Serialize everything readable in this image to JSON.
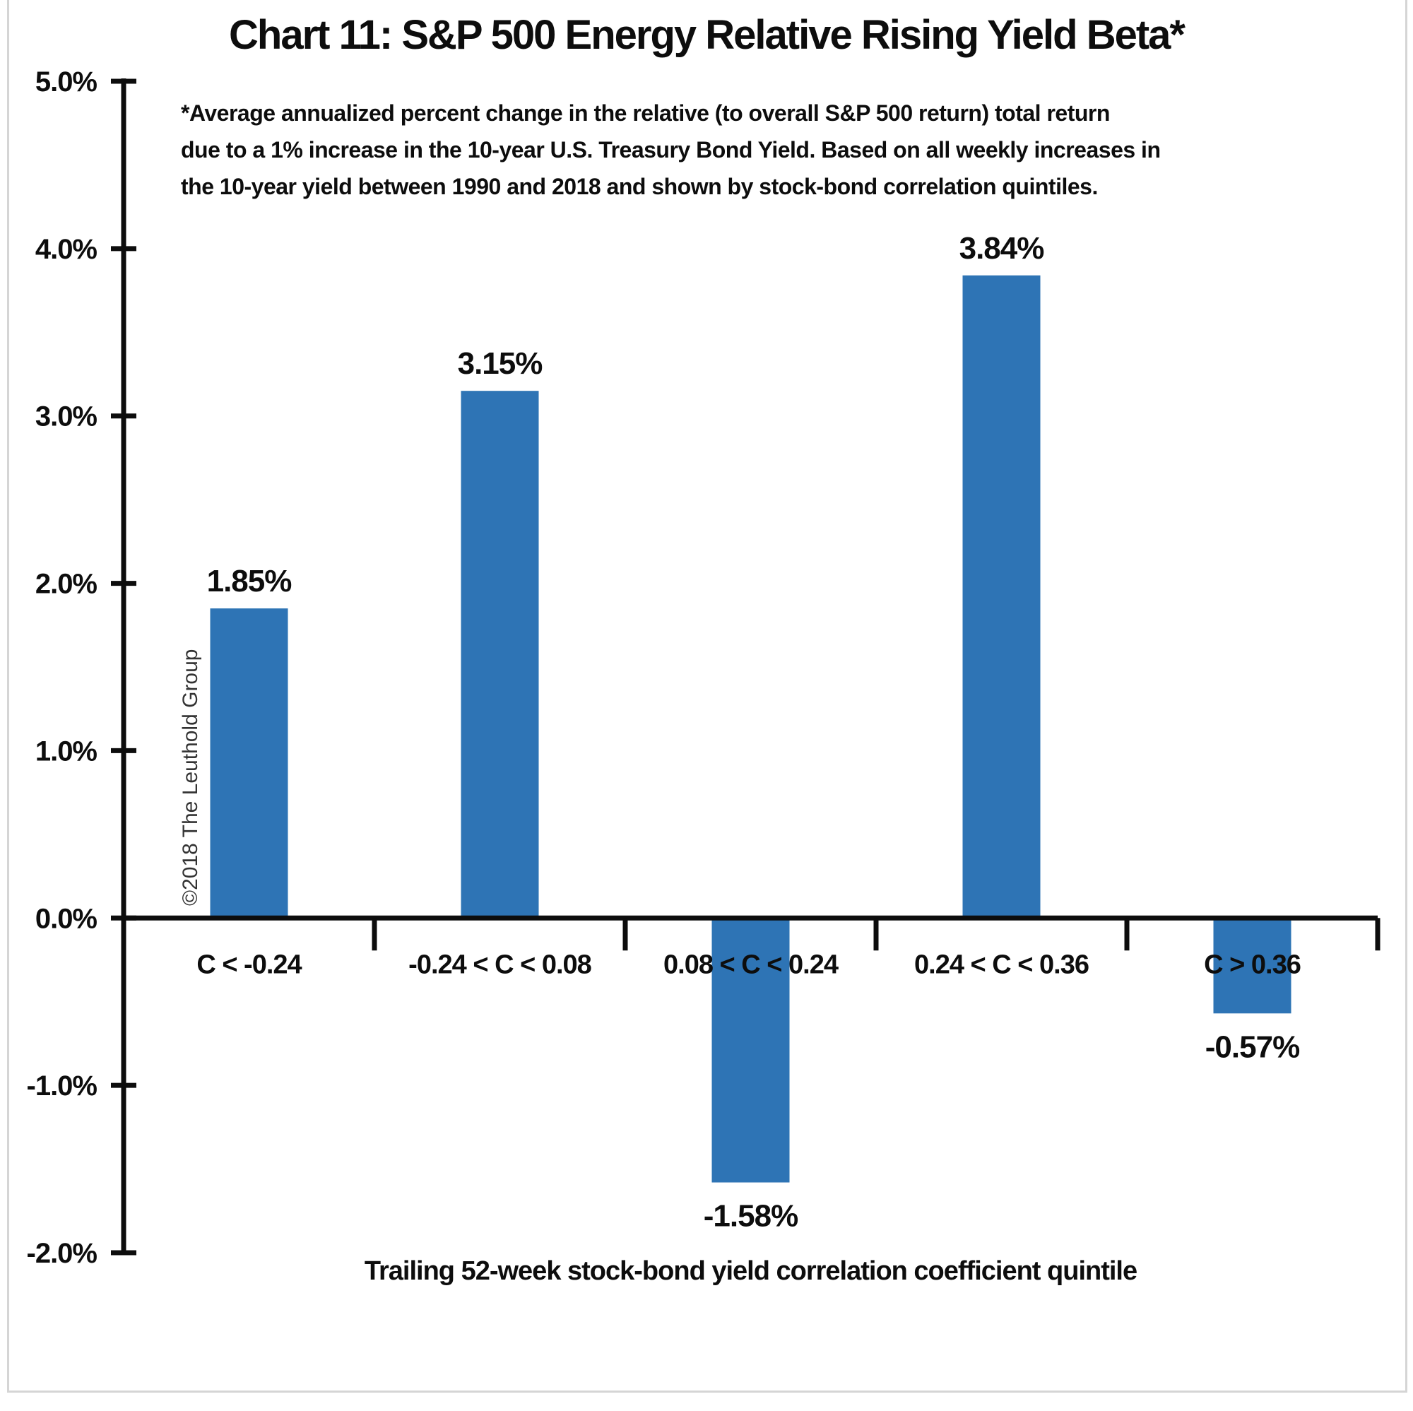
{
  "header": {
    "title": "Chart 11: S&P 500 Energy Relative Rising Yield Beta*"
  },
  "footnote": {
    "lines": [
      "*Average annualized percent change in the relative (to overall S&P 500 return) total return",
      "due to a 1% increase in the 10-year U.S. Treasury Bond Yield. Based on all weekly increases in",
      "the 10-year yield between 1990 and 2018 and shown by stock-bond correlation quintiles."
    ]
  },
  "watermark": {
    "text": "©2018 The Leuthold Group"
  },
  "chart_data": {
    "type": "bar",
    "title": "Chart 11: S&P 500 Energy Relative Rising Yield Beta*",
    "categories": [
      "C < -0.24",
      "-0.24 < C < 0.08",
      "0.08 < C < 0.24",
      "0.24 < C < 0.36",
      "C > 0.36"
    ],
    "values": [
      1.85,
      3.15,
      -1.58,
      3.84,
      -0.57
    ],
    "value_labels": [
      "1.85%",
      "3.15%",
      "-1.58%",
      "3.84%",
      "-0.57%"
    ],
    "xlabel": "Trailing 52-week stock-bond yield correlation coefficient quintile",
    "ylabel": "",
    "ylim": [
      -2.0,
      5.0
    ],
    "y_ticks": [
      {
        "value": 5.0,
        "label": "5.0%"
      },
      {
        "value": 4.0,
        "label": "4.0%"
      },
      {
        "value": 3.0,
        "label": "3.0%"
      },
      {
        "value": 2.0,
        "label": "2.0%"
      },
      {
        "value": 1.0,
        "label": "1.0%"
      },
      {
        "value": 0.0,
        "label": "0.0%"
      },
      {
        "value": -1.0,
        "label": "-1.0%"
      },
      {
        "value": -2.0,
        "label": "-2.0%"
      }
    ],
    "bar_color": "#2E74B5",
    "axis_color": "#0d0d0d",
    "grid": false,
    "legend": false
  }
}
